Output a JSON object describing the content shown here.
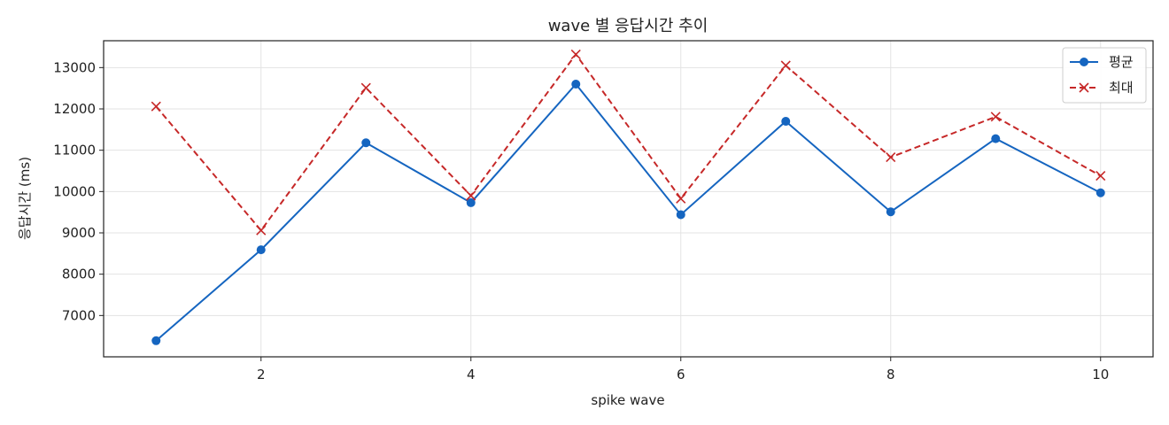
{
  "chart_data": {
    "type": "line",
    "title": "wave 별 응답시간 추이",
    "xlabel": "spike wave",
    "ylabel": "응답시간 (ms)",
    "x": [
      1,
      2,
      3,
      4,
      5,
      6,
      7,
      8,
      9,
      10
    ],
    "xlim": [
      0.5,
      10.5
    ],
    "ylim": [
      6000,
      13650
    ],
    "xticks": [
      2,
      4,
      6,
      8,
      10
    ],
    "yticks": [
      7000,
      8000,
      9000,
      10000,
      11000,
      12000,
      13000
    ],
    "grid": true,
    "legend_position": "top-right",
    "series": [
      {
        "name": "평균",
        "color": "#1565c0",
        "line_style": "solid",
        "marker": "circle",
        "values": [
          6390,
          8590,
          11180,
          9730,
          12600,
          9440,
          11700,
          9510,
          11280,
          9970
        ]
      },
      {
        "name": "최대",
        "color": "#c62828",
        "line_style": "dashed",
        "marker": "x",
        "values": [
          12060,
          9060,
          12510,
          9900,
          13320,
          9830,
          13050,
          10830,
          11810,
          10380
        ]
      }
    ]
  }
}
